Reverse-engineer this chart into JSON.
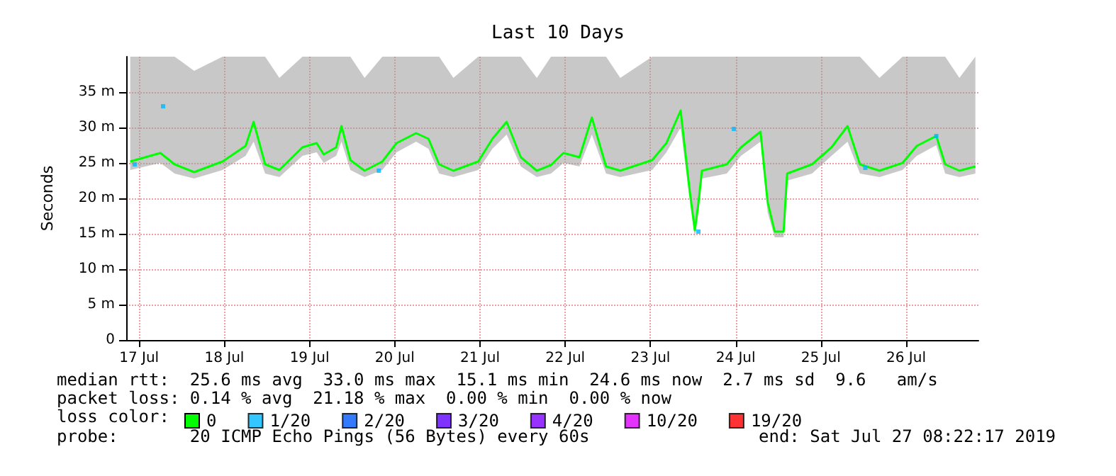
{
  "chart_data": {
    "type": "line",
    "title": "Last 10 Days",
    "ylabel": "Seconds",
    "legend_title": "loss color:",
    "legend": "bottom",
    "grid": true,
    "xlim": [
      "2019-07-17T08:22",
      "2019-07-27T08:22"
    ],
    "xticks": [
      {
        "value": "2019-07-17T12:00",
        "label": "17 Jul"
      },
      {
        "value": "2019-07-18T12:00",
        "label": "18 Jul"
      },
      {
        "value": "2019-07-19T12:00",
        "label": "19 Jul"
      },
      {
        "value": "2019-07-20T12:00",
        "label": "20 Jul"
      },
      {
        "value": "2019-07-21T12:00",
        "label": "21 Jul"
      },
      {
        "value": "2019-07-22T12:00",
        "label": "22 Jul"
      },
      {
        "value": "2019-07-23T12:00",
        "label": "23 Jul"
      },
      {
        "value": "2019-07-24T12:00",
        "label": "24 Jul"
      },
      {
        "value": "2019-07-25T12:00",
        "label": "25 Jul"
      },
      {
        "value": "2019-07-26T12:00",
        "label": "26 Jul"
      }
    ],
    "ylim": [
      0,
      40
    ],
    "yticks": [
      0,
      {
        "value": 5,
        "label": "5 m"
      },
      {
        "value": 10,
        "label": "10 m"
      },
      {
        "value": 15,
        "label": "15 m"
      },
      {
        "value": 20,
        "label": "20 m"
      },
      {
        "value": 25,
        "label": "25 m"
      },
      {
        "value": 30,
        "label": "30 m"
      },
      {
        "value": 35,
        "label": "35 m"
      }
    ],
    "series": [
      {
        "name": "0",
        "color": "#00ff00",
        "x": [
          "2019-07-17T09:30",
          "2019-07-17T18:00",
          "2019-07-17T22:00",
          "2019-07-18T03:30",
          "2019-07-18T11:30",
          "2019-07-18T18:00",
          "2019-07-18T20:15",
          "2019-07-18T23:30",
          "2019-07-19T03:30",
          "2019-07-19T10:00",
          "2019-07-19T14:00",
          "2019-07-19T16:00",
          "2019-07-19T19:30",
          "2019-07-19T21:00",
          "2019-07-19T23:30",
          "2019-07-20T03:30",
          "2019-07-20T08:30",
          "2019-07-20T12:30",
          "2019-07-20T18:00",
          "2019-07-20T21:30",
          "2019-07-21T00:30",
          "2019-07-21T04:30",
          "2019-07-21T11:30",
          "2019-07-21T15:30",
          "2019-07-21T19:30",
          "2019-07-21T23:30",
          "2019-07-22T04:00",
          "2019-07-22T08:00",
          "2019-07-22T11:30",
          "2019-07-22T16:00",
          "2019-07-22T19:30",
          "2019-07-22T23:30",
          "2019-07-23T03:30",
          "2019-07-23T12:30",
          "2019-07-23T16:30",
          "2019-07-23T20:30",
          "2019-07-23T23:00",
          "2019-07-24T00:30",
          "2019-07-24T01:30",
          "2019-07-24T02:30",
          "2019-07-24T09:30",
          "2019-07-24T13:30",
          "2019-07-24T19:00",
          "2019-07-24T21:00",
          "2019-07-24T23:00",
          "2019-07-25T01:30",
          "2019-07-25T02:30",
          "2019-07-25T09:30",
          "2019-07-25T15:00",
          "2019-07-25T19:30",
          "2019-07-25T23:00",
          "2019-07-26T04:30",
          "2019-07-26T11:00",
          "2019-07-26T15:00",
          "2019-07-26T20:30",
          "2019-07-26T23:00",
          "2019-07-27T03:00",
          "2019-07-27T07:30"
        ],
        "values": [
          25.2,
          26.4,
          24.8,
          23.7,
          25.2,
          27.4,
          30.8,
          24.8,
          24,
          27.2,
          27.8,
          26.2,
          27.2,
          30.2,
          25.4,
          23.9,
          25.2,
          27.8,
          29.2,
          28.4,
          24.8,
          23.9,
          25.2,
          28.4,
          30.8,
          25.8,
          23.9,
          24.7,
          26.4,
          25.8,
          31.4,
          24.5,
          23.9,
          25.4,
          27.8,
          32.4,
          21.3,
          15.5,
          19.3,
          23.9,
          24.8,
          27.2,
          29.4,
          19.5,
          15.3,
          15.3,
          23.5,
          24.8,
          27.2,
          30.2,
          24.8,
          23.9,
          25,
          27.4,
          28.8,
          24.8,
          23.9,
          24.5
        ],
        "lower": [
          24,
          25,
          23.5,
          22.8,
          24,
          26,
          28,
          23.5,
          23,
          26,
          26.5,
          25,
          26,
          28,
          24,
          23,
          24,
          26.5,
          28,
          27,
          23.5,
          23,
          24,
          27,
          29,
          24.5,
          23,
          23.5,
          25,
          24.5,
          29,
          23.5,
          23,
          24,
          26.5,
          30,
          20,
          14.5,
          18,
          22.8,
          23.5,
          26,
          28,
          18,
          14.5,
          14.5,
          22.5,
          23.5,
          26,
          28,
          23.5,
          23,
          24,
          26,
          27.5,
          23.5,
          23,
          23.5
        ],
        "upper": [
          40,
          40,
          40,
          38,
          40,
          40,
          40,
          40,
          37,
          40,
          40,
          40,
          40,
          40,
          40,
          37,
          40,
          40,
          40,
          40,
          40,
          37,
          40,
          40,
          40,
          40,
          37,
          40,
          40,
          40,
          40,
          40,
          37,
          40,
          40,
          40,
          40,
          40,
          40,
          40,
          40,
          40,
          40,
          40,
          40,
          40,
          40,
          40,
          40,
          40,
          40,
          37,
          40,
          40,
          40,
          40,
          37,
          40
        ]
      },
      {
        "name": "1/20",
        "color": "#00b8ff",
        "type": "scatter",
        "marker": "square",
        "x": [
          "2019-07-17T10:45",
          "2019-07-17T18:45",
          "2019-07-20T07:30",
          "2019-07-24T01:30",
          "2019-07-24T11:30",
          "2019-07-26T00:30",
          "2019-07-26T20:30"
        ],
        "values": [
          24.8,
          33,
          23.9,
          15.3,
          29.8,
          24.3,
          28.8
        ]
      },
      {
        "name": "2/20",
        "color": "#0059ff",
        "type": "scatter"
      },
      {
        "name": "3/20",
        "color": "#5e00ff",
        "type": "scatter"
      },
      {
        "name": "4/20",
        "color": "#7e00ff",
        "type": "scatter"
      },
      {
        "name": "10/20",
        "color": "#dd00ff",
        "type": "scatter"
      },
      {
        "name": "19/20",
        "color": "#ff0000",
        "type": "scatter"
      }
    ],
    "annotations": [
      "median rtt:  25.6 ms avg  33.0 ms max  15.1 ms min  24.6 ms now  2.7 ms sd  9.6   am/s",
      "packet loss: 0.14 % avg  21.18 % max  0.00 % min  0.00 % now",
      "probe:       20 ICMP Echo Pings (56 Bytes) every 60s",
      "end: Sat Jul 27 08:22:17 2019"
    ]
  }
}
